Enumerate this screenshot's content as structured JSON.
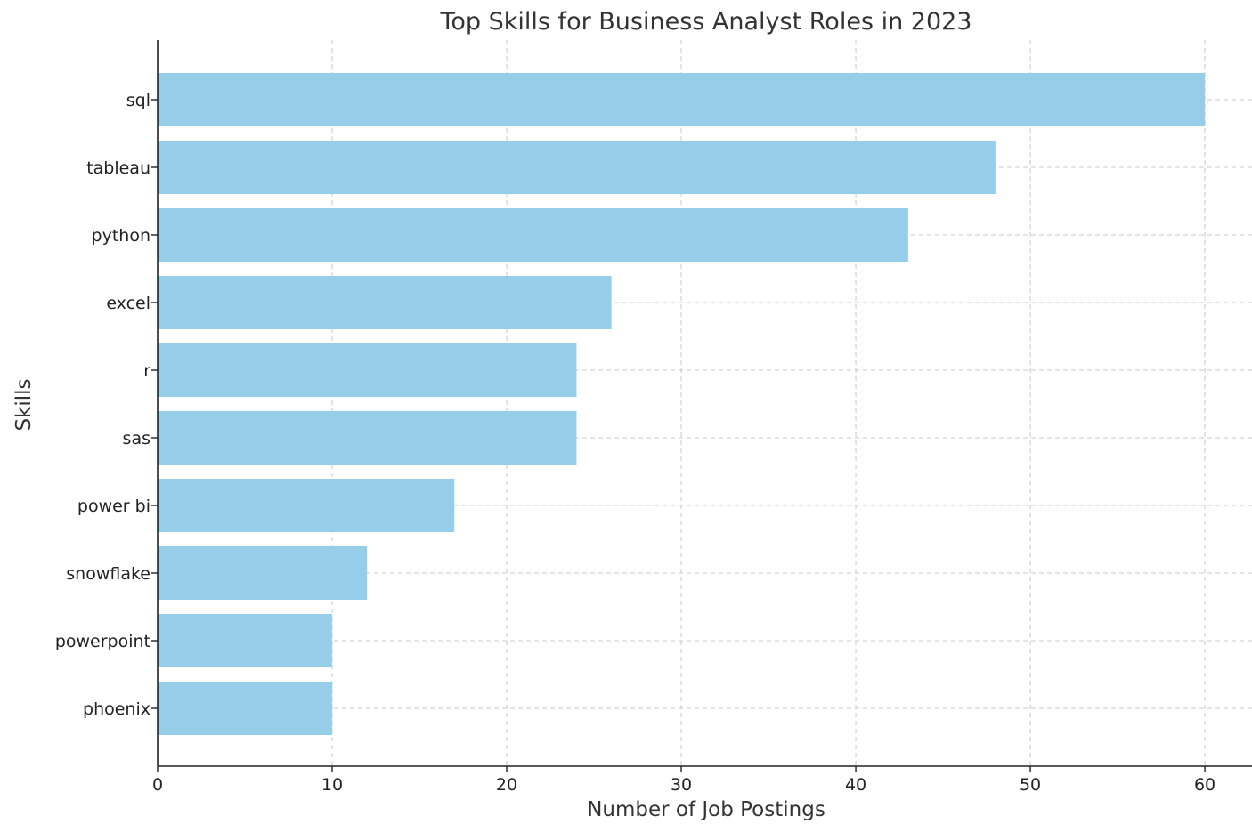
{
  "chart_data": {
    "type": "bar",
    "orientation": "horizontal",
    "title": "Top Skills for Business Analyst Roles in 2023",
    "xlabel": "Number of Job Postings",
    "ylabel": "Skills",
    "categories": [
      "sql",
      "tableau",
      "python",
      "excel",
      "r",
      "sas",
      "power bi",
      "snowflake",
      "powerpoint",
      "phoenix"
    ],
    "values": [
      60,
      48,
      43,
      26,
      24,
      24,
      17,
      12,
      10,
      10
    ],
    "xlim": [
      0,
      62.7
    ],
    "xticks": [
      "0",
      "10",
      "20",
      "30",
      "40",
      "50",
      "60"
    ],
    "bar_color": "#96cde8",
    "grid": true,
    "grid_style": "dashed"
  }
}
